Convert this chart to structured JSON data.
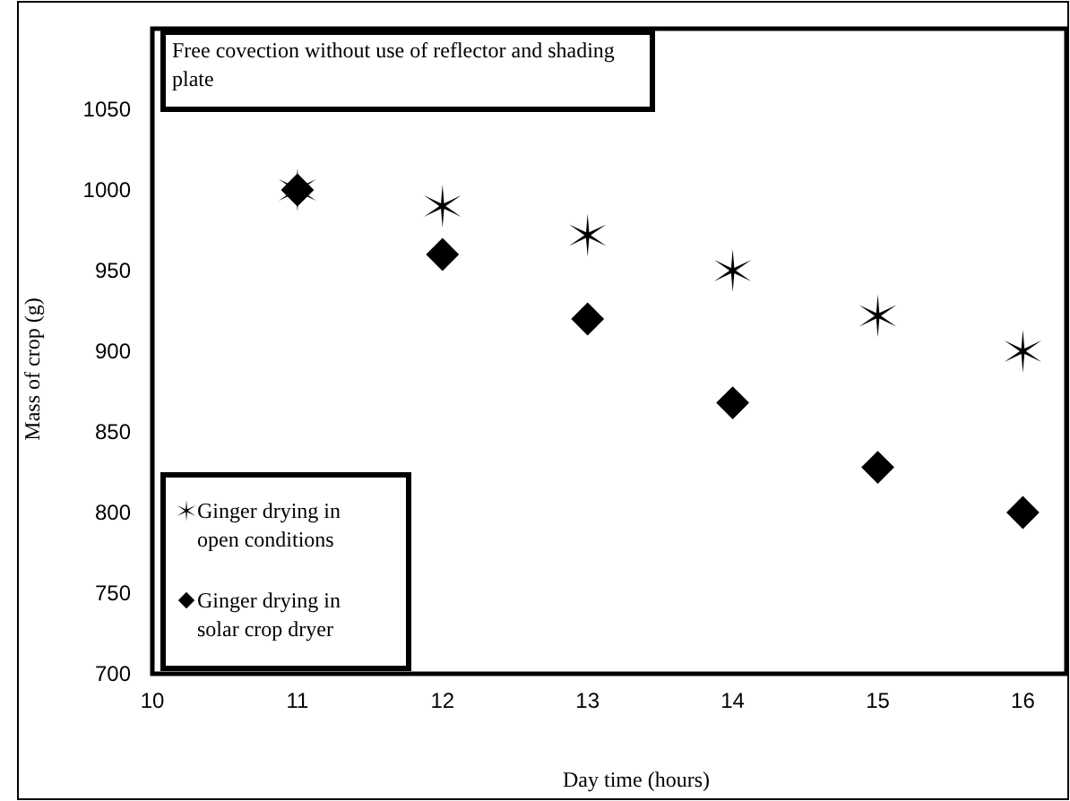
{
  "chart_data": {
    "type": "scatter",
    "xlabel": "Day time (hours)",
    "ylabel": "Mass of crop (g)",
    "annotations": [
      "Free covection without use of reflector and shading plate"
    ],
    "x": [
      11,
      12,
      13,
      14,
      15,
      16
    ],
    "series": [
      {
        "name": "Ginger drying in open conditions",
        "color": "#000000",
        "marker": "cross",
        "values": [
          1000,
          990,
          972,
          950,
          922,
          900
        ]
      },
      {
        "name": "Ginger drying in solar crop dryer",
        "color": "#000000",
        "marker": "diamond",
        "values": [
          1000,
          960,
          920,
          868,
          828,
          800
        ]
      }
    ],
    "xlim": [
      10,
      16.3
    ],
    "xticks": [
      10,
      11,
      12,
      13,
      14,
      15,
      16
    ],
    "ylim": [
      700,
      1100
    ],
    "yticks": [
      700,
      750,
      800,
      850,
      900,
      950,
      1000,
      1050
    ],
    "grid": false,
    "legend": "bottom left"
  }
}
